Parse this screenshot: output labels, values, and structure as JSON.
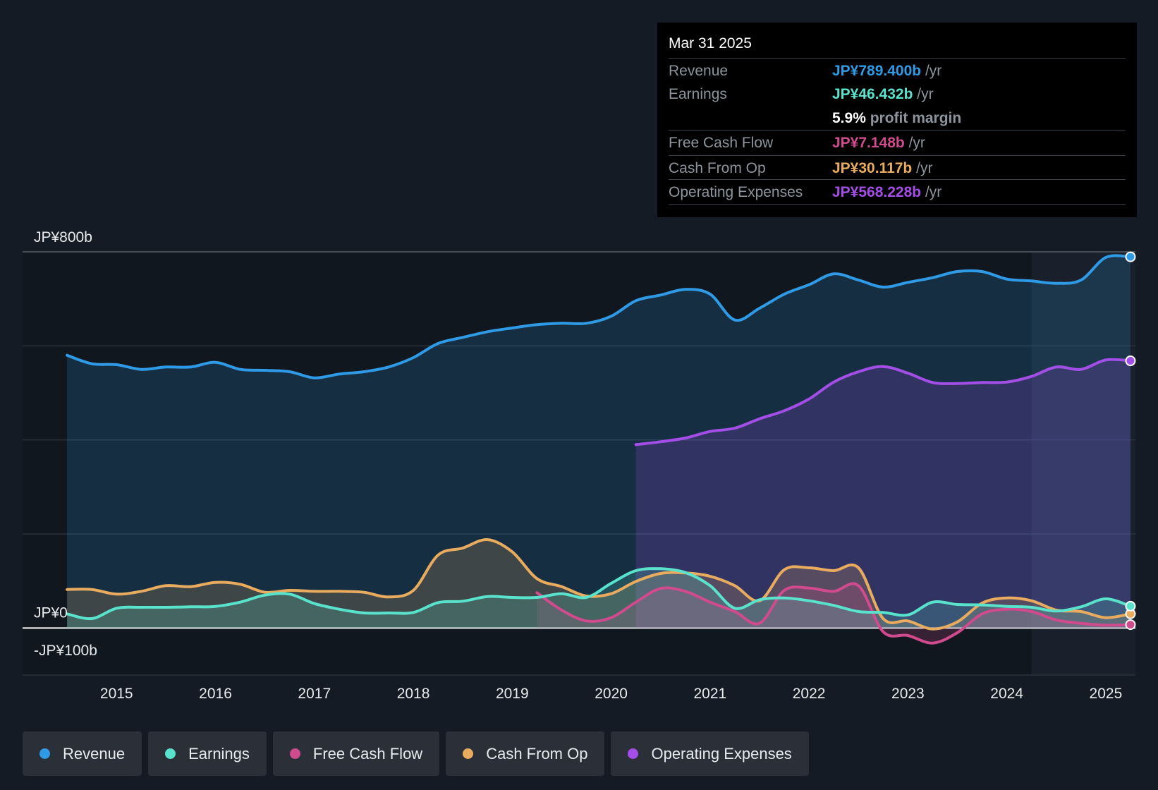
{
  "chart_data": {
    "type": "area",
    "currency_prefix": "JP¥",
    "y_unit": "b",
    "ylim": [
      -100,
      800
    ],
    "y_tick_labels": [
      {
        "value": 800,
        "label": "JP¥800b"
      },
      {
        "value": 0,
        "label": "JP¥0"
      },
      {
        "value": -100,
        "label": "-JP¥100b"
      }
    ],
    "y_gridlines": [
      800,
      600,
      400,
      200,
      0,
      -100
    ],
    "xlim": [
      2014.05,
      2025.3
    ],
    "x_ticks": [
      {
        "value": 2015,
        "label": "2015"
      },
      {
        "value": 2016,
        "label": "2016"
      },
      {
        "value": 2017,
        "label": "2017"
      },
      {
        "value": 2018,
        "label": "2018"
      },
      {
        "value": 2019,
        "label": "2019"
      },
      {
        "value": 2020,
        "label": "2020"
      },
      {
        "value": 2021,
        "label": "2021"
      },
      {
        "value": 2022,
        "label": "2022"
      },
      {
        "value": 2023,
        "label": "2023"
      },
      {
        "value": 2024,
        "label": "2024"
      },
      {
        "value": 2025,
        "label": "2025"
      }
    ],
    "forecast_shade_start": 2024.25,
    "series": [
      {
        "name": "Revenue",
        "color": "#2f9ae6",
        "fill": true,
        "x": [
          2014.5,
          2014.75,
          2015.0,
          2015.25,
          2015.5,
          2015.75,
          2016.0,
          2016.25,
          2016.5,
          2016.75,
          2017.0,
          2017.25,
          2017.5,
          2017.75,
          2018.0,
          2018.25,
          2018.5,
          2018.75,
          2019.0,
          2019.25,
          2019.5,
          2019.75,
          2020.0,
          2020.25,
          2020.5,
          2020.75,
          2021.0,
          2021.25,
          2021.5,
          2021.75,
          2022.0,
          2022.25,
          2022.5,
          2022.75,
          2023.0,
          2023.25,
          2023.5,
          2023.75,
          2024.0,
          2024.25,
          2024.5,
          2024.75,
          2025.0,
          2025.25
        ],
        "values": [
          580,
          562,
          560,
          550,
          555,
          555,
          565,
          550,
          548,
          545,
          532,
          540,
          545,
          555,
          575,
          605,
          618,
          630,
          638,
          645,
          648,
          648,
          663,
          696,
          708,
          720,
          710,
          655,
          680,
          710,
          730,
          753,
          740,
          725,
          735,
          745,
          758,
          758,
          742,
          738,
          733,
          740,
          788,
          789.4
        ]
      },
      {
        "name": "Operating Expenses",
        "color": "#a44ee8",
        "fill": true,
        "x": [
          2020.25,
          2020.5,
          2020.75,
          2021.0,
          2021.25,
          2021.5,
          2021.75,
          2022.0,
          2022.25,
          2022.5,
          2022.75,
          2023.0,
          2023.25,
          2023.5,
          2023.75,
          2024.0,
          2024.25,
          2024.5,
          2024.75,
          2025.0,
          2025.25
        ],
        "values": [
          390,
          396,
          404,
          418,
          425,
          445,
          462,
          487,
          523,
          545,
          556,
          542,
          522,
          520,
          522,
          523,
          535,
          555,
          550,
          570,
          568.228
        ]
      },
      {
        "name": "Cash From Op",
        "color": "#e9ac5e",
        "fill": true,
        "x": [
          2014.5,
          2014.75,
          2015.0,
          2015.25,
          2015.5,
          2015.75,
          2016.0,
          2016.25,
          2016.5,
          2016.75,
          2017.0,
          2017.25,
          2017.5,
          2017.75,
          2018.0,
          2018.25,
          2018.5,
          2018.75,
          2019.0,
          2019.25,
          2019.5,
          2019.75,
          2020.0,
          2020.25,
          2020.5,
          2020.75,
          2021.0,
          2021.25,
          2021.5,
          2021.75,
          2022.0,
          2022.25,
          2022.5,
          2022.75,
          2023.0,
          2023.25,
          2023.5,
          2023.75,
          2024.0,
          2024.25,
          2024.5,
          2024.75,
          2025.0,
          2025.25
        ],
        "values": [
          82,
          82,
          72,
          78,
          90,
          88,
          97,
          93,
          76,
          80,
          78,
          78,
          76,
          66,
          80,
          155,
          170,
          188,
          162,
          105,
          88,
          68,
          73,
          99,
          116,
          117,
          110,
          90,
          58,
          124,
          128,
          122,
          128,
          20,
          15,
          -2,
          13,
          53,
          64,
          58,
          38,
          35,
          22,
          30.117
        ]
      },
      {
        "name": "Free Cash Flow",
        "color": "#d04b8d",
        "fill": true,
        "x": [
          2019.25,
          2019.5,
          2019.75,
          2020.0,
          2020.25,
          2020.5,
          2020.75,
          2021.0,
          2021.25,
          2021.5,
          2021.75,
          2022.0,
          2022.25,
          2022.5,
          2022.75,
          2023.0,
          2023.25,
          2023.5,
          2023.75,
          2024.0,
          2024.25,
          2024.5,
          2024.75,
          2025.0,
          2025.25
        ],
        "values": [
          75,
          38,
          15,
          22,
          55,
          84,
          78,
          55,
          35,
          10,
          80,
          85,
          78,
          90,
          -8,
          -16,
          -32,
          -10,
          30,
          40,
          35,
          17,
          10,
          6,
          7.148
        ]
      },
      {
        "name": "Earnings",
        "color": "#59e2cc",
        "fill": true,
        "x": [
          2014.5,
          2014.75,
          2015.0,
          2015.25,
          2015.5,
          2015.75,
          2016.0,
          2016.25,
          2016.5,
          2016.75,
          2017.0,
          2017.25,
          2017.5,
          2017.75,
          2018.0,
          2018.25,
          2018.5,
          2018.75,
          2019.0,
          2019.25,
          2019.5,
          2019.75,
          2020.0,
          2020.25,
          2020.5,
          2020.75,
          2021.0,
          2021.25,
          2021.5,
          2021.75,
          2022.0,
          2022.25,
          2022.5,
          2022.75,
          2023.0,
          2023.25,
          2023.5,
          2023.75,
          2024.0,
          2024.25,
          2024.5,
          2024.75,
          2025.0,
          2025.25
        ],
        "values": [
          30,
          20,
          42,
          44,
          44,
          45,
          46,
          55,
          70,
          72,
          52,
          40,
          32,
          32,
          33,
          54,
          57,
          67,
          65,
          65,
          73,
          65,
          95,
          122,
          126,
          118,
          90,
          42,
          60,
          64,
          58,
          48,
          35,
          33,
          28,
          55,
          50,
          49,
          46,
          44,
          36,
          45,
          62,
          46.432
        ]
      }
    ]
  },
  "tooltip": {
    "date": "Mar 31 2025",
    "rows": {
      "revenue": {
        "label": "Revenue",
        "value": "JP¥789.400b",
        "unit": "/yr",
        "color": "#2f9ae6"
      },
      "earnings": {
        "label": "Earnings",
        "value": "JP¥46.432b",
        "unit": "/yr",
        "color": "#59e2cc"
      },
      "margin": {
        "value": "5.9%",
        "text": "profit margin"
      },
      "fcf": {
        "label": "Free Cash Flow",
        "value": "JP¥7.148b",
        "unit": "/yr",
        "color": "#d04b8d"
      },
      "cfo": {
        "label": "Cash From Op",
        "value": "JP¥30.117b",
        "unit": "/yr",
        "color": "#e9ac5e"
      },
      "opex": {
        "label": "Operating Expenses",
        "value": "JP¥568.228b",
        "unit": "/yr",
        "color": "#a44ee8"
      }
    }
  },
  "legend": {
    "items": [
      {
        "label": "Revenue",
        "color": "#2f9ae6"
      },
      {
        "label": "Earnings",
        "color": "#59e2cc"
      },
      {
        "label": "Free Cash Flow",
        "color": "#d04b8d"
      },
      {
        "label": "Cash From Op",
        "color": "#e9ac5e"
      },
      {
        "label": "Operating Expenses",
        "color": "#a44ee8"
      }
    ]
  }
}
